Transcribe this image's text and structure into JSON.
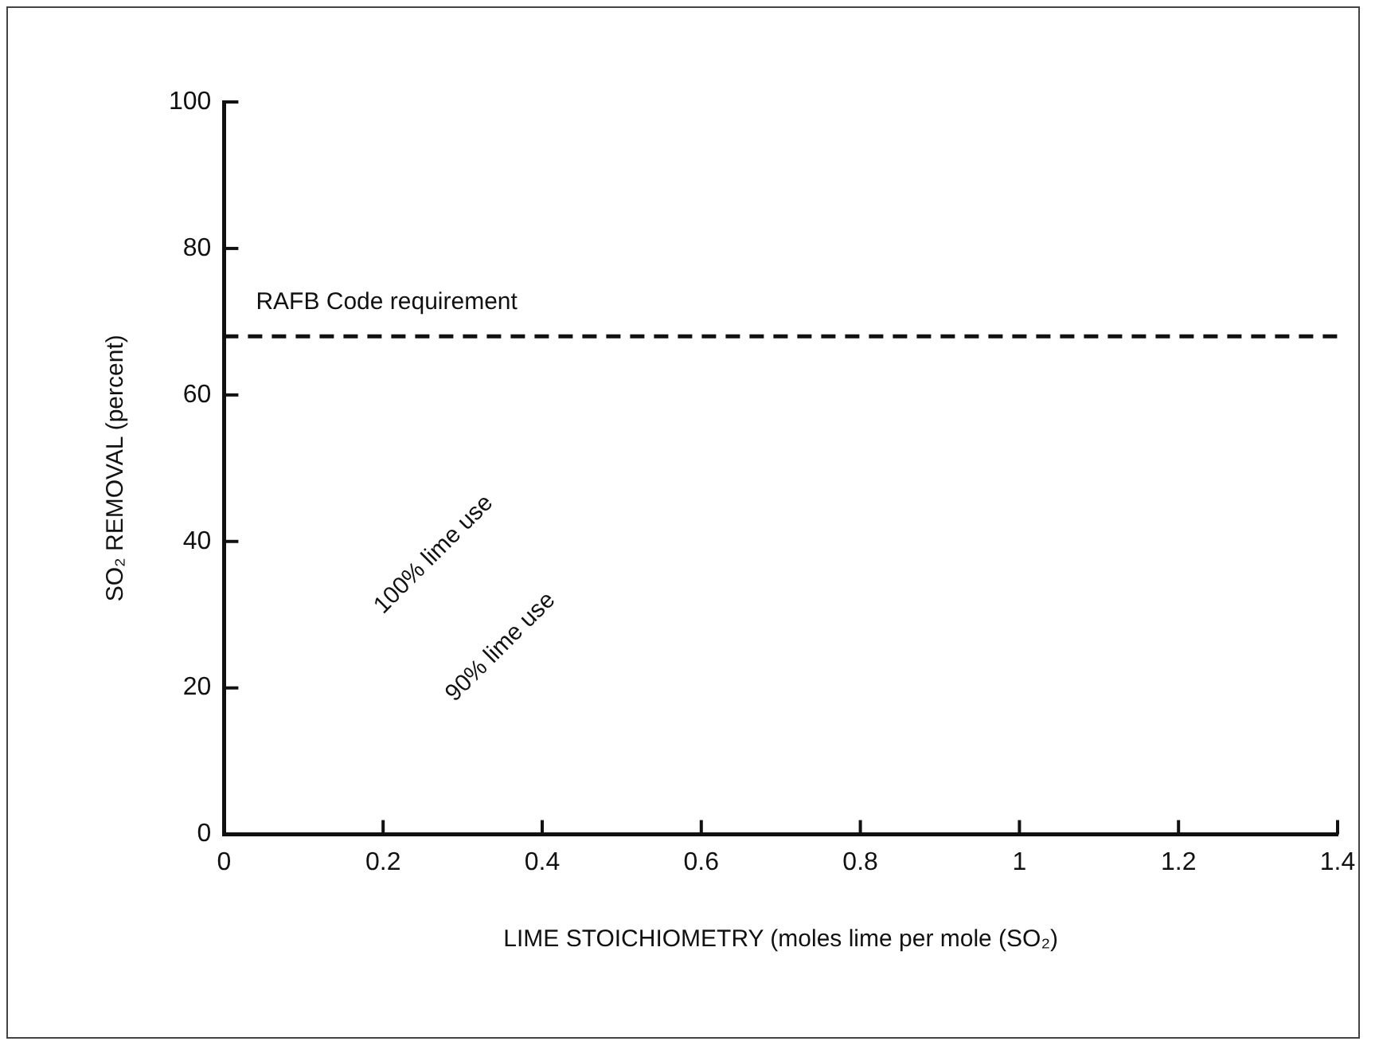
{
  "chart_data": {
    "type": "line",
    "xlabel": "LIME STOICHIOMETRY (moles lime per mole (SO₂)",
    "ylabel": "SO₂ REMOVAL (percent)",
    "xlim": [
      0,
      1.4
    ],
    "ylim": [
      0,
      100
    ],
    "xticks": [
      0,
      0.2,
      0.4,
      0.6,
      0.8,
      1.0,
      1.2,
      1.4
    ],
    "yticks": [
      0,
      20,
      40,
      60,
      80,
      100
    ],
    "grid": false,
    "legend": false,
    "ref_lines": [
      {
        "axis": "y",
        "value": 68,
        "label": "RAFB Code requirement",
        "color": "#111111",
        "line_style": "dashed"
      }
    ],
    "annotations": [
      "100% lime use",
      "90% lime use"
    ]
  }
}
